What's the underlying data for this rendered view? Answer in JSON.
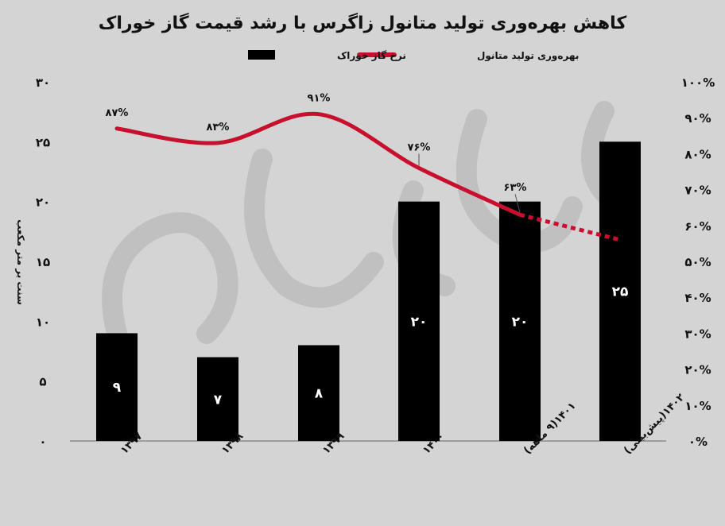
{
  "chart_data": {
    "type": "bar",
    "title": "کاهش بهره‌وری تولید متانول زاگرس با رشد قیمت گاز خوراک",
    "ylabel": "سنت بر متر مکعب",
    "categories": [
      "۱۳۹۷",
      "۱۳۹۸",
      "۱۳۹۹",
      "۱۴۰۰",
      "۱۴۰۱(۹ ماهه)",
      "۱۴۰۲(پیش‌بینی)"
    ],
    "y_left": {
      "range": [
        0,
        30
      ],
      "ticks": [
        0,
        5,
        10,
        15,
        20,
        25,
        30
      ],
      "tick_labels": [
        "۰",
        "۵",
        "۱۰",
        "۱۵",
        "۲۰",
        "۲۵",
        "۳۰"
      ]
    },
    "y_right": {
      "range": [
        0,
        100
      ],
      "ticks": [
        0,
        10,
        20,
        30,
        40,
        50,
        60,
        70,
        80,
        90,
        100
      ],
      "tick_labels": [
        "۰%",
        "۱۰%",
        "۲۰%",
        "۳۰%",
        "۴۰%",
        "۵۰%",
        "۶۰%",
        "۷۰%",
        "۸۰%",
        "۹۰%",
        "۱۰۰%"
      ]
    },
    "series": [
      {
        "name": "نرخ گاز خوراک",
        "type": "bar",
        "axis": "left",
        "values": [
          9,
          7,
          8,
          20,
          20,
          25
        ],
        "value_labels": [
          "۹",
          "۷",
          "۸",
          "۲۰",
          "۲۰",
          "۲۵"
        ],
        "color": "#000000"
      },
      {
        "name": "بهره‌وری تولید متانول",
        "type": "line",
        "axis": "right",
        "values": [
          87,
          83,
          91,
          76,
          63,
          56
        ],
        "value_labels": [
          "۸۷%",
          "۸۳%",
          "۹۱%",
          "۷۶%",
          "۶۳%",
          ""
        ],
        "forecast_from_index": 4,
        "color": "#c8102e"
      }
    ],
    "legend_position": "top-center",
    "grid": false
  }
}
